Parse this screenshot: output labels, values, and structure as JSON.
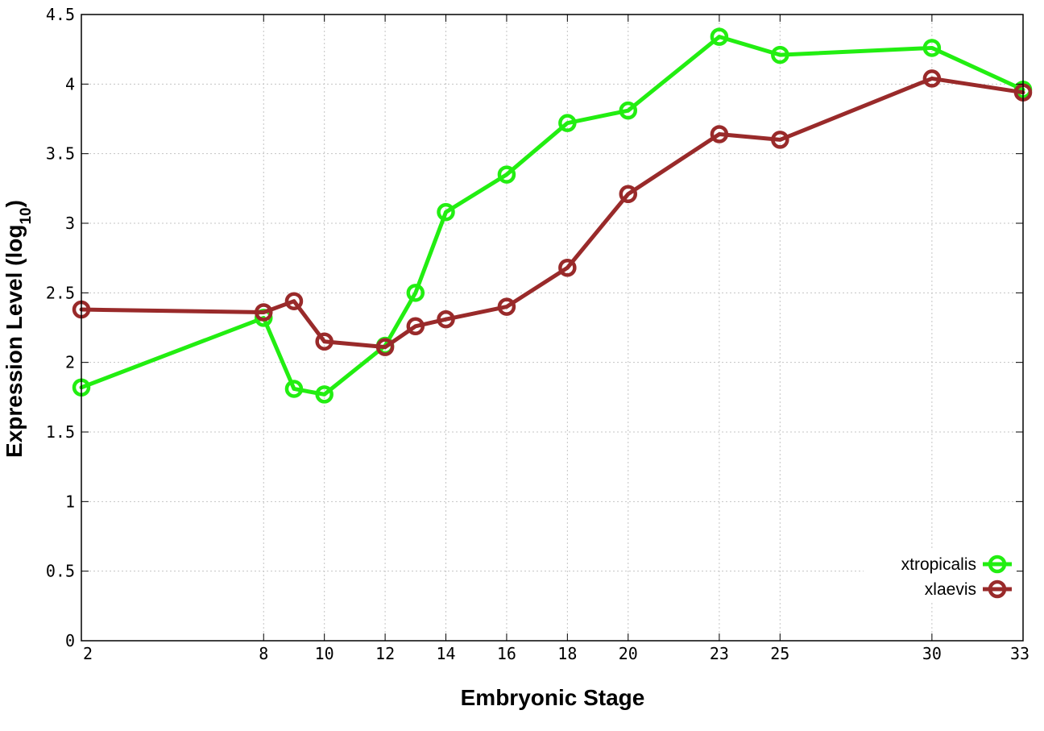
{
  "chart_data": {
    "type": "line",
    "xlabel": "Embryonic Stage",
    "ylabel_main": "Expression Level (log",
    "ylabel_sub": "10",
    "ylabel_close": ")",
    "ylim": [
      0,
      4.5
    ],
    "xlim": [
      2,
      33
    ],
    "grid": true,
    "legend_position": "bottom-right",
    "x": [
      2,
      8,
      9,
      10,
      12,
      13,
      14,
      16,
      18,
      20,
      23,
      25,
      30,
      33
    ],
    "x_tick_labels": [
      "2",
      "8",
      "10",
      "12",
      "14",
      "16",
      "18",
      "20",
      "23",
      "25",
      "30",
      "33"
    ],
    "y_ticks": [
      0,
      0.5,
      1,
      1.5,
      2,
      2.5,
      3,
      3.5,
      4,
      4.5
    ],
    "y_tick_labels": [
      "0",
      "0.5",
      "1",
      "1.5",
      "2",
      "2.5",
      "3",
      "3.5",
      "4",
      "4.5"
    ],
    "series": [
      {
        "name": "xtropicalis",
        "color": "#22ee11",
        "values": [
          1.82,
          2.32,
          1.81,
          1.77,
          2.12,
          2.5,
          3.08,
          3.35,
          3.72,
          3.81,
          4.34,
          4.21,
          4.26,
          3.96
        ]
      },
      {
        "name": "xlaevis",
        "color": "#992a2a",
        "values": [
          2.38,
          2.36,
          2.44,
          2.15,
          2.11,
          2.26,
          2.31,
          2.4,
          2.68,
          3.21,
          3.64,
          3.6,
          4.04,
          3.94
        ]
      }
    ]
  }
}
